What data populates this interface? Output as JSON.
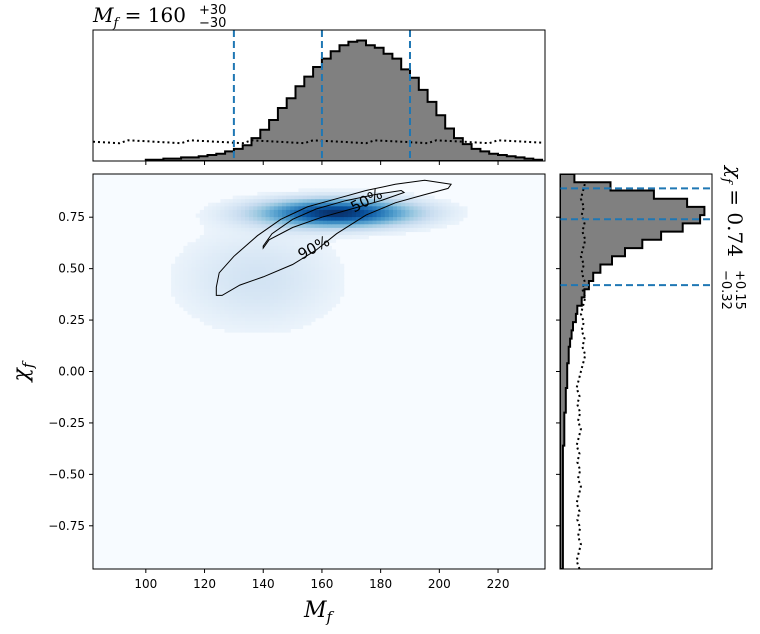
{
  "chart_data": {
    "type": "heatmap",
    "subtype": "corner-plot-2d-posterior-with-marginals",
    "main": {
      "xlabel": "M",
      "xlabel_sub": "f",
      "ylabel": "χ",
      "ylabel_sub": "f",
      "xlim": [
        82,
        236
      ],
      "ylim": [
        -0.96,
        0.96
      ],
      "xticks": [
        100,
        120,
        140,
        160,
        180,
        200,
        220
      ],
      "yticks": [
        -0.75,
        -0.5,
        -0.25,
        0.0,
        0.25,
        0.5,
        0.75
      ],
      "xtick_labels": [
        "100",
        "120",
        "140",
        "160",
        "180",
        "200",
        "220"
      ],
      "ytick_labels": [
        "−0.75",
        "−0.50",
        "−0.25",
        "0.00",
        "0.25",
        "0.50",
        "0.75"
      ],
      "colormap": "Blues",
      "density_peak": {
        "x": 165,
        "y": 0.77
      },
      "contours": [
        {
          "label": "50%",
          "points": [
            [
              140,
              0.6
            ],
            [
              142,
              0.64
            ],
            [
              150,
              0.7
            ],
            [
              160,
              0.75
            ],
            [
              170,
              0.79
            ],
            [
              180,
              0.83
            ],
            [
              188,
              0.87
            ],
            [
              187,
              0.88
            ],
            [
              178,
              0.86
            ],
            [
              168,
              0.83
            ],
            [
              158,
              0.79
            ],
            [
              150,
              0.74
            ],
            [
              143,
              0.67
            ],
            [
              140,
              0.61
            ]
          ]
        },
        {
          "label": "90%",
          "points": [
            [
              124,
              0.37
            ],
            [
              124,
              0.41
            ],
            [
              125,
              0.48
            ],
            [
              130,
              0.56
            ],
            [
              138,
              0.66
            ],
            [
              146,
              0.74
            ],
            [
              155,
              0.8
            ],
            [
              165,
              0.84
            ],
            [
              175,
              0.88
            ],
            [
              185,
              0.91
            ],
            [
              195,
              0.93
            ],
            [
              204,
              0.91
            ],
            [
              203,
              0.89
            ],
            [
              195,
              0.86
            ],
            [
              185,
              0.82
            ],
            [
              175,
              0.76
            ],
            [
              165,
              0.67
            ],
            [
              158,
              0.59
            ],
            [
              150,
              0.52
            ],
            [
              140,
              0.46
            ],
            [
              132,
              0.42
            ],
            [
              126,
              0.37
            ]
          ]
        }
      ]
    },
    "top_marginal": {
      "title": "M",
      "title_sub": "f",
      "title_value": "160",
      "title_sup": "+30",
      "title_inf": "−30",
      "bin_edges_start": 100,
      "bin_width": 3,
      "density": [
        0.01,
        0.01,
        0.02,
        0.02,
        0.03,
        0.03,
        0.04,
        0.05,
        0.06,
        0.08,
        0.1,
        0.13,
        0.19,
        0.26,
        0.34,
        0.44,
        0.52,
        0.62,
        0.7,
        0.78,
        0.85,
        0.91,
        0.96,
        0.99,
        1.0,
        0.96,
        0.94,
        0.89,
        0.85,
        0.76,
        0.69,
        0.59,
        0.49,
        0.38,
        0.27,
        0.19,
        0.14,
        0.1,
        0.08,
        0.06,
        0.05,
        0.04,
        0.03,
        0.02,
        0.01
      ],
      "prior_level": 0.16,
      "quantile_lines": [
        130,
        160,
        190
      ],
      "line_color": "#1f77b4"
    },
    "right_marginal": {
      "title": "χ",
      "title_sub": "f",
      "title_value": "0.74",
      "title_sup": "+0.15",
      "title_inf": "−0.32",
      "bin_edges_start": -0.96,
      "bin_width": 0.04,
      "density": [
        0.02,
        0.02,
        0.02,
        0.02,
        0.02,
        0.02,
        0.02,
        0.02,
        0.02,
        0.02,
        0.02,
        0.02,
        0.02,
        0.02,
        0.02,
        0.03,
        0.03,
        0.03,
        0.03,
        0.04,
        0.04,
        0.04,
        0.05,
        0.05,
        0.05,
        0.06,
        0.06,
        0.07,
        0.08,
        0.09,
        0.11,
        0.12,
        0.15,
        0.17,
        0.2,
        0.23,
        0.28,
        0.36,
        0.45,
        0.57,
        0.7,
        0.85,
        0.97,
        1.0,
        0.88,
        0.65,
        0.35,
        0.1
      ],
      "prior_level": 0.16,
      "quantile_lines": [
        0.42,
        0.74,
        0.89
      ],
      "line_color": "#1f77b4"
    }
  }
}
